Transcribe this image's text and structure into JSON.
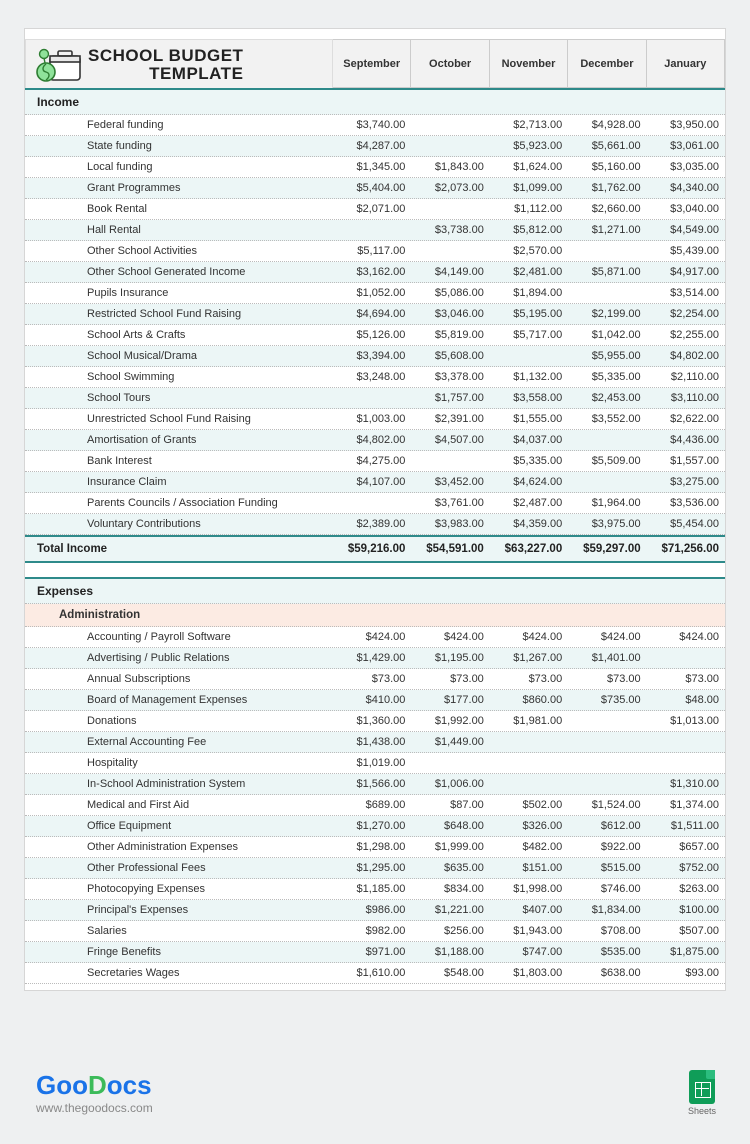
{
  "title": "SCHOOL BUDGET\nTEMPLATE",
  "months": [
    "September",
    "October",
    "November",
    "December",
    "January"
  ],
  "income": {
    "label": "Income",
    "rows": [
      {
        "label": "Federal funding",
        "vals": [
          "$3,740.00",
          "",
          "$2,713.00",
          "$4,928.00",
          "$3,950.00"
        ]
      },
      {
        "label": "State funding",
        "vals": [
          "$4,287.00",
          "",
          "$5,923.00",
          "$5,661.00",
          "$3,061.00"
        ]
      },
      {
        "label": "Local funding",
        "vals": [
          "$1,345.00",
          "$1,843.00",
          "$1,624.00",
          "$5,160.00",
          "$3,035.00"
        ]
      },
      {
        "label": "Grant Programmes",
        "vals": [
          "$5,404.00",
          "$2,073.00",
          "$1,099.00",
          "$1,762.00",
          "$4,340.00"
        ]
      },
      {
        "label": "Book Rental",
        "vals": [
          "$2,071.00",
          "",
          "$1,112.00",
          "$2,660.00",
          "$3,040.00"
        ]
      },
      {
        "label": "Hall Rental",
        "vals": [
          "",
          "$3,738.00",
          "$5,812.00",
          "$1,271.00",
          "$4,549.00"
        ]
      },
      {
        "label": "Other School Activities",
        "vals": [
          "$5,117.00",
          "",
          "$2,570.00",
          "",
          "$5,439.00"
        ]
      },
      {
        "label": "Other School Generated Income",
        "vals": [
          "$3,162.00",
          "$4,149.00",
          "$2,481.00",
          "$5,871.00",
          "$4,917.00"
        ]
      },
      {
        "label": "Pupils Insurance",
        "vals": [
          "$1,052.00",
          "$5,086.00",
          "$1,894.00",
          "",
          "$3,514.00"
        ]
      },
      {
        "label": "Restricted School Fund Raising",
        "vals": [
          "$4,694.00",
          "$3,046.00",
          "$5,195.00",
          "$2,199.00",
          "$2,254.00"
        ]
      },
      {
        "label": "School Arts & Crafts",
        "vals": [
          "$5,126.00",
          "$5,819.00",
          "$5,717.00",
          "$1,042.00",
          "$2,255.00"
        ]
      },
      {
        "label": "School Musical/Drama",
        "vals": [
          "$3,394.00",
          "$5,608.00",
          "",
          "$5,955.00",
          "$4,802.00"
        ]
      },
      {
        "label": "School Swimming",
        "vals": [
          "$3,248.00",
          "$3,378.00",
          "$1,132.00",
          "$5,335.00",
          "$2,110.00"
        ]
      },
      {
        "label": "School Tours",
        "vals": [
          "",
          "$1,757.00",
          "$3,558.00",
          "$2,453.00",
          "$3,110.00"
        ]
      },
      {
        "label": "Unrestricted School Fund Raising",
        "vals": [
          "$1,003.00",
          "$2,391.00",
          "$1,555.00",
          "$3,552.00",
          "$2,622.00"
        ]
      },
      {
        "label": "Amortisation of Grants",
        "vals": [
          "$4,802.00",
          "$4,507.00",
          "$4,037.00",
          "",
          "$4,436.00"
        ]
      },
      {
        "label": "Bank Interest",
        "vals": [
          "$4,275.00",
          "",
          "$5,335.00",
          "$5,509.00",
          "$1,557.00"
        ]
      },
      {
        "label": "Insurance Claim",
        "vals": [
          "$4,107.00",
          "$3,452.00",
          "$4,624.00",
          "",
          "$3,275.00"
        ]
      },
      {
        "label": "Parents Councils / Association Funding",
        "vals": [
          "",
          "$3,761.00",
          "$2,487.00",
          "$1,964.00",
          "$3,536.00"
        ]
      },
      {
        "label": "Voluntary Contributions",
        "vals": [
          "$2,389.00",
          "$3,983.00",
          "$4,359.00",
          "$3,975.00",
          "$5,454.00"
        ]
      }
    ],
    "total_label": "Total Income",
    "total_vals": [
      "$59,216.00",
      "$54,591.00",
      "$63,227.00",
      "$59,297.00",
      "$71,256.00"
    ]
  },
  "expenses": {
    "label": "Expenses",
    "admin_label": "Administration",
    "rows": [
      {
        "label": "Accounting / Payroll Software",
        "vals": [
          "$424.00",
          "$424.00",
          "$424.00",
          "$424.00",
          "$424.00"
        ]
      },
      {
        "label": "Advertising / Public Relations",
        "vals": [
          "$1,429.00",
          "$1,195.00",
          "$1,267.00",
          "$1,401.00",
          ""
        ]
      },
      {
        "label": "Annual Subscriptions",
        "vals": [
          "$73.00",
          "$73.00",
          "$73.00",
          "$73.00",
          "$73.00"
        ]
      },
      {
        "label": "Board of Management Expenses",
        "vals": [
          "$410.00",
          "$177.00",
          "$860.00",
          "$735.00",
          "$48.00"
        ]
      },
      {
        "label": "Donations",
        "vals": [
          "$1,360.00",
          "$1,992.00",
          "$1,981.00",
          "",
          "$1,013.00"
        ]
      },
      {
        "label": "External Accounting Fee",
        "vals": [
          "$1,438.00",
          "$1,449.00",
          "",
          "",
          ""
        ]
      },
      {
        "label": "Hospitality",
        "vals": [
          "$1,019.00",
          "",
          "",
          "",
          ""
        ]
      },
      {
        "label": "In-School Administration System",
        "vals": [
          "$1,566.00",
          "$1,006.00",
          "",
          "",
          "$1,310.00"
        ]
      },
      {
        "label": "Medical and First Aid",
        "vals": [
          "$689.00",
          "$87.00",
          "$502.00",
          "$1,524.00",
          "$1,374.00"
        ]
      },
      {
        "label": "Office Equipment",
        "vals": [
          "$1,270.00",
          "$648.00",
          "$326.00",
          "$612.00",
          "$1,511.00"
        ]
      },
      {
        "label": "Other Administration Expenses",
        "vals": [
          "$1,298.00",
          "$1,999.00",
          "$482.00",
          "$922.00",
          "$657.00"
        ]
      },
      {
        "label": "Other Professional Fees",
        "vals": [
          "$1,295.00",
          "$635.00",
          "$151.00",
          "$515.00",
          "$752.00"
        ]
      },
      {
        "label": "Photocopying Expenses",
        "vals": [
          "$1,185.00",
          "$834.00",
          "$1,998.00",
          "$746.00",
          "$263.00"
        ]
      },
      {
        "label": "Principal's Expenses",
        "vals": [
          "$986.00",
          "$1,221.00",
          "$407.00",
          "$1,834.00",
          "$100.00"
        ]
      },
      {
        "label": "Salaries",
        "vals": [
          "$982.00",
          "$256.00",
          "$1,943.00",
          "$708.00",
          "$507.00"
        ]
      },
      {
        "label": "Fringe Benefits",
        "vals": [
          "$971.00",
          "$1,188.00",
          "$747.00",
          "$535.00",
          "$1,875.00"
        ]
      },
      {
        "label": "Secretaries Wages",
        "vals": [
          "$1,610.00",
          "$548.00",
          "$1,803.00",
          "$638.00",
          "$93.00"
        ]
      }
    ]
  },
  "footer": {
    "brand_html": "GooDocs",
    "url": "www.thegoodocs.com",
    "sheets_label": "Sheets"
  },
  "colors": {
    "page_bg": "#eef0f1",
    "teal_border": "#2e8a8a",
    "alt_row": "#ecf6f6",
    "admin_bg": "#fcebe3"
  }
}
